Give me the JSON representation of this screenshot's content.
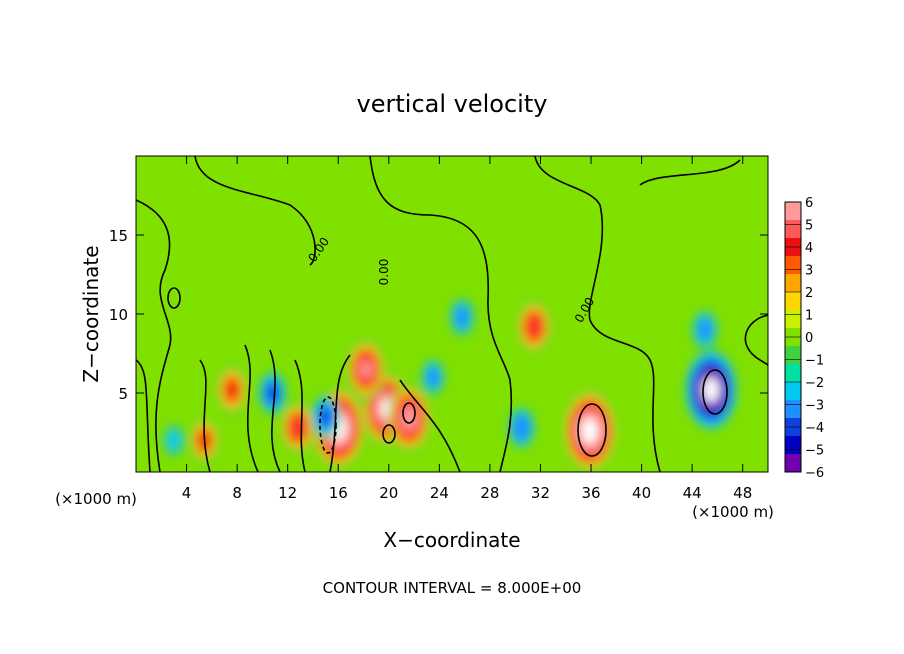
{
  "chart_data": {
    "type": "heatmap",
    "title": "vertical velocity",
    "xlabel": "X−coordinate",
    "ylabel": "Z−coordinate",
    "x_unit_left": "(×1000 m)",
    "x_unit_right": "(×1000 m)",
    "footer": "CONTOUR INTERVAL = 8.000E+00",
    "xlim": [
      0,
      50
    ],
    "ylim": [
      0,
      20
    ],
    "x_ticks": [
      4,
      8,
      12,
      16,
      20,
      24,
      28,
      32,
      36,
      40,
      44,
      48
    ],
    "x_tick_labels": [
      "4",
      "8",
      "12",
      "16",
      "20",
      "24",
      "28",
      "32",
      "36",
      "40",
      "44",
      "48"
    ],
    "y_ticks": [
      5,
      10,
      15
    ],
    "y_tick_labels": [
      "5",
      "10",
      "15"
    ],
    "contour_labels": [
      "0.00",
      "0.00",
      "0.00"
    ],
    "colorbar": {
      "levels": [
        6,
        5,
        4,
        3,
        2,
        1,
        0,
        -1,
        -2,
        -3,
        -4,
        -5,
        -6
      ],
      "labels": [
        "6",
        "5",
        "4",
        "3",
        "2",
        "1",
        "0",
        "−1",
        "−2",
        "−3",
        "−4",
        "−5",
        "−6"
      ],
      "colors": [
        "#ff9a9a",
        "#ff5a5a",
        "#ee1010",
        "#ff5a00",
        "#ffa500",
        "#ffd700",
        "#c8f000",
        "#80e000",
        "#40d040",
        "#00e0a0",
        "#00c8f0",
        "#1e90ff",
        "#1040e0",
        "#0000c0",
        "#7000b0"
      ]
    },
    "features": [
      {
        "kind": "updraft",
        "x": 16.0,
        "z": 2.8,
        "w": 8.5
      },
      {
        "kind": "updraft",
        "x": 19.8,
        "z": 4.0,
        "w": 7.5
      },
      {
        "kind": "updraft",
        "x": 21.6,
        "z": 3.4,
        "w": 6.5
      },
      {
        "kind": "updraft",
        "x": 35.9,
        "z": 2.6,
        "w": 8.5
      },
      {
        "kind": "updraft",
        "x": 31.5,
        "z": 9.2,
        "w": 4.5
      },
      {
        "kind": "updraft",
        "x": 7.6,
        "z": 5.2,
        "w": 4.0
      },
      {
        "kind": "updraft",
        "x": 5.4,
        "z": 2.0,
        "w": 3.5
      },
      {
        "kind": "updraft",
        "x": 12.8,
        "z": 2.8,
        "w": 4.5
      },
      {
        "kind": "updraft",
        "x": 18.2,
        "z": 6.5,
        "w": 5.5
      },
      {
        "kind": "downdraft",
        "x": 45.5,
        "z": 5.2,
        "w": -8.5
      },
      {
        "kind": "downdraft",
        "x": 45.0,
        "z": 9.0,
        "w": -3.0
      },
      {
        "kind": "downdraft",
        "x": 25.8,
        "z": 9.8,
        "w": -2.8
      },
      {
        "kind": "downdraft",
        "x": 30.5,
        "z": 2.8,
        "w": -3.2
      },
      {
        "kind": "downdraft",
        "x": 23.5,
        "z": 6.0,
        "w": -2.5
      },
      {
        "kind": "downdraft",
        "x": 15.0,
        "z": 3.5,
        "w": -3.5
      },
      {
        "kind": "downdraft",
        "x": 10.8,
        "z": 5.0,
        "w": -3.5
      },
      {
        "kind": "downdraft",
        "x": 3.0,
        "z": 2.0,
        "w": -2.0
      }
    ]
  }
}
